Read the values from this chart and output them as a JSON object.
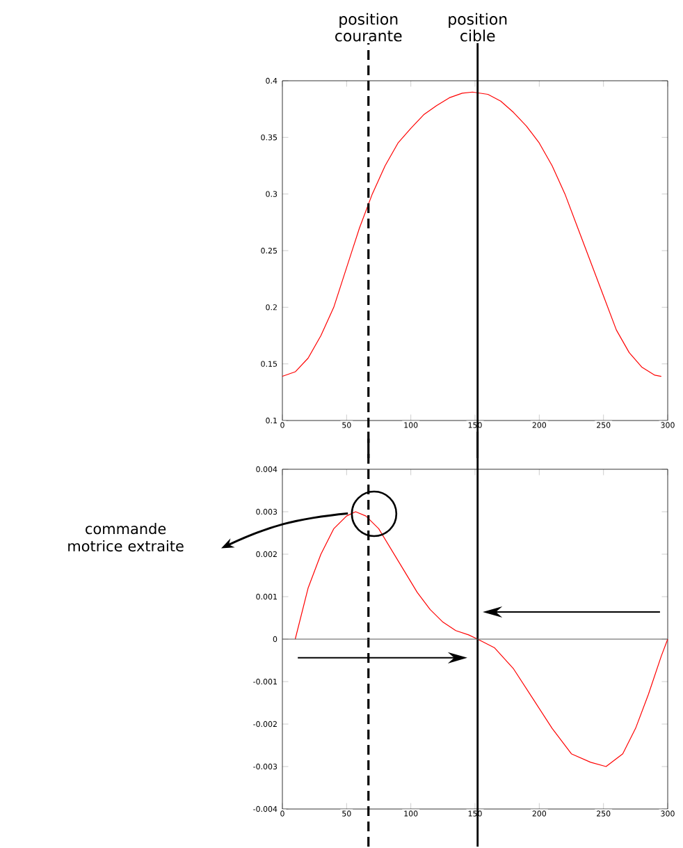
{
  "chart_data": [
    {
      "type": "line",
      "xlim": [
        0,
        300
      ],
      "xticks": [
        0,
        50,
        100,
        150,
        200,
        250,
        300
      ],
      "ylim": [
        0.1,
        0.4
      ],
      "yticks": [
        0.1,
        0.15,
        0.2,
        0.25,
        0.3,
        0.35,
        0.4
      ],
      "grid": false,
      "x": [
        0,
        10,
        20,
        30,
        40,
        50,
        60,
        70,
        80,
        90,
        100,
        110,
        120,
        130,
        140,
        148,
        160,
        170,
        180,
        190,
        200,
        210,
        220,
        230,
        240,
        250,
        260,
        270,
        280,
        290,
        295
      ],
      "series": [
        {
          "color": "#ff0000",
          "values": [
            0.139,
            0.143,
            0.155,
            0.175,
            0.2,
            0.235,
            0.27,
            0.3,
            0.325,
            0.345,
            0.358,
            0.37,
            0.378,
            0.385,
            0.389,
            0.39,
            0.388,
            0.382,
            0.372,
            0.36,
            0.345,
            0.325,
            0.3,
            0.27,
            0.24,
            0.21,
            0.18,
            0.16,
            0.147,
            0.14,
            0.139
          ]
        }
      ],
      "ref_lines": [
        {
          "axis": "x",
          "value": 67,
          "label": "position courante",
          "color": "#000000",
          "line_style": "dashed"
        },
        {
          "axis": "x",
          "value": 152,
          "label": "position cible",
          "color": "#000000",
          "line_style": "solid"
        }
      ]
    },
    {
      "type": "line",
      "xlim": [
        0,
        300
      ],
      "xticks": [
        0,
        50,
        100,
        150,
        200,
        250,
        300
      ],
      "ylim": [
        -0.004,
        0.004
      ],
      "yticks": [
        -0.004,
        -0.003,
        -0.002,
        -0.001,
        0,
        0.001,
        0.002,
        0.003,
        0.004
      ],
      "grid": false,
      "x": [
        10,
        20,
        30,
        40,
        50,
        57,
        65,
        75,
        85,
        95,
        105,
        115,
        125,
        135,
        145,
        152,
        165,
        180,
        195,
        210,
        225,
        240,
        252,
        265,
        275,
        285,
        295,
        300
      ],
      "series": [
        {
          "color": "#ff0000",
          "values": [
            0,
            0.0012,
            0.002,
            0.0026,
            0.0029,
            0.003,
            0.0029,
            0.0026,
            0.0021,
            0.0016,
            0.0011,
            0.0007,
            0.0004,
            0.0002,
            0.0001,
            0,
            -0.0002,
            -0.0007,
            -0.0014,
            -0.0021,
            -0.0027,
            -0.0029,
            -0.003,
            -0.0027,
            -0.0021,
            -0.0013,
            -0.0004,
            0
          ]
        }
      ],
      "ref_lines": [
        {
          "axis": "x",
          "value": 67,
          "color": "#000000",
          "line_style": "dashed"
        },
        {
          "axis": "x",
          "value": 152,
          "color": "#000000",
          "line_style": "solid"
        },
        {
          "axis": "y",
          "value": 0,
          "color": "#555555",
          "line_style": "solid"
        }
      ],
      "annotations": [
        "commande motrice extraite"
      ]
    }
  ]
}
